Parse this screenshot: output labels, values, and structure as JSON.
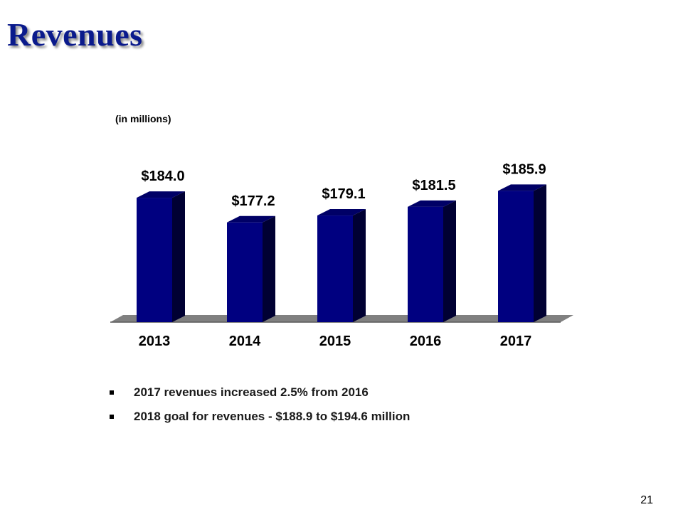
{
  "slide": {
    "title": "Revenues",
    "units_note": "(in millions)",
    "page_number": "21"
  },
  "bullets": [
    "2017 revenues increased 2.5% from 2016",
    "2018 goal for revenues - $188.9 to $194.6 million"
  ],
  "colors": {
    "title": "#0a1a8c",
    "bar_front": "#000080",
    "bar_top": "#000066",
    "bar_side": "#000033",
    "floor": "#808080"
  },
  "chart_data": {
    "type": "bar",
    "categories": [
      "2013",
      "2014",
      "2015",
      "2016",
      "2017"
    ],
    "values": [
      184.0,
      177.2,
      179.1,
      181.5,
      185.9
    ],
    "data_labels": [
      "$184.0",
      "$177.2",
      "$179.1",
      "$181.5",
      "$185.9"
    ],
    "title": "",
    "xlabel": "",
    "ylabel": "",
    "grid": false,
    "legend": "none"
  }
}
